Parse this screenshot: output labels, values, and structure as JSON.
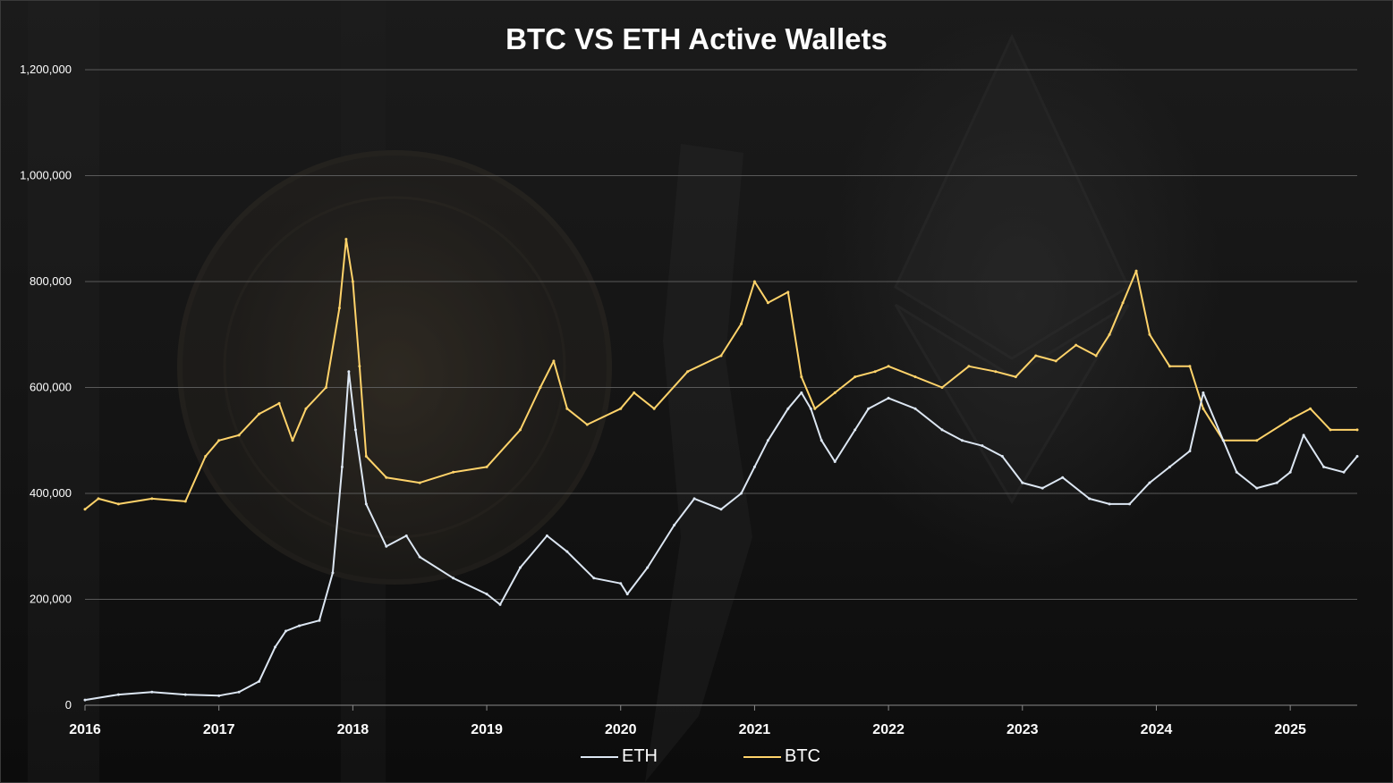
{
  "chart_data": {
    "type": "line",
    "title": "BTC VS ETH Active Wallets",
    "xlabel": "",
    "ylabel": "",
    "xlim": [
      2016.0,
      2025.5
    ],
    "ylim": [
      0,
      1200000
    ],
    "grid": true,
    "legend_position": "bottom",
    "x_ticks": [
      "2016",
      "2017",
      "2018",
      "2019",
      "2020",
      "2021",
      "2022",
      "2023",
      "2024",
      "2025"
    ],
    "y_ticks": [
      "0",
      "200,000",
      "400,000",
      "600,000",
      "800,000",
      "1,000,000",
      "1,200,000"
    ],
    "series": [
      {
        "name": "ETH",
        "color": "#dce6f2",
        "x": [
          2016.0,
          2016.25,
          2016.5,
          2016.75,
          2017.0,
          2017.15,
          2017.3,
          2017.42,
          2017.5,
          2017.6,
          2017.75,
          2017.85,
          2017.92,
          2017.97,
          2018.02,
          2018.1,
          2018.25,
          2018.4,
          2018.5,
          2018.75,
          2019.0,
          2019.1,
          2019.25,
          2019.45,
          2019.6,
          2019.8,
          2020.0,
          2020.05,
          2020.2,
          2020.4,
          2020.55,
          2020.75,
          2020.9,
          2021.0,
          2021.1,
          2021.25,
          2021.35,
          2021.42,
          2021.5,
          2021.6,
          2021.75,
          2021.85,
          2022.0,
          2022.2,
          2022.4,
          2022.55,
          2022.7,
          2022.85,
          2023.0,
          2023.15,
          2023.3,
          2023.5,
          2023.65,
          2023.8,
          2023.95,
          2024.1,
          2024.25,
          2024.35,
          2024.5,
          2024.6,
          2024.75,
          2024.9,
          2025.0,
          2025.1,
          2025.25,
          2025.4,
          2025.5
        ],
        "values": [
          10000,
          20000,
          25000,
          20000,
          18000,
          25000,
          45000,
          110000,
          140000,
          150000,
          160000,
          250000,
          450000,
          630000,
          520000,
          380000,
          300000,
          320000,
          280000,
          240000,
          210000,
          190000,
          260000,
          320000,
          290000,
          240000,
          230000,
          210000,
          260000,
          340000,
          390000,
          370000,
          400000,
          450000,
          500000,
          560000,
          590000,
          560000,
          500000,
          460000,
          520000,
          560000,
          580000,
          560000,
          520000,
          500000,
          490000,
          470000,
          420000,
          410000,
          430000,
          390000,
          380000,
          380000,
          420000,
          450000,
          480000,
          590000,
          500000,
          440000,
          410000,
          420000,
          440000,
          510000,
          450000,
          440000,
          470000
        ]
      },
      {
        "name": "BTC",
        "color": "#ffd36a",
        "x": [
          2016.0,
          2016.1,
          2016.25,
          2016.5,
          2016.75,
          2016.9,
          2017.0,
          2017.15,
          2017.3,
          2017.45,
          2017.55,
          2017.65,
          2017.8,
          2017.9,
          2017.95,
          2018.0,
          2018.05,
          2018.1,
          2018.25,
          2018.5,
          2018.75,
          2019.0,
          2019.25,
          2019.4,
          2019.5,
          2019.6,
          2019.75,
          2020.0,
          2020.1,
          2020.25,
          2020.5,
          2020.75,
          2020.9,
          2021.0,
          2021.1,
          2021.25,
          2021.35,
          2021.45,
          2021.6,
          2021.75,
          2021.9,
          2022.0,
          2022.2,
          2022.4,
          2022.6,
          2022.8,
          2022.95,
          2023.1,
          2023.25,
          2023.4,
          2023.55,
          2023.65,
          2023.75,
          2023.85,
          2023.95,
          2024.1,
          2024.25,
          2024.35,
          2024.5,
          2024.75,
          2025.0,
          2025.15,
          2025.3,
          2025.5
        ],
        "values": [
          370000,
          390000,
          380000,
          390000,
          385000,
          470000,
          500000,
          510000,
          550000,
          570000,
          500000,
          560000,
          600000,
          750000,
          880000,
          800000,
          640000,
          470000,
          430000,
          420000,
          440000,
          450000,
          520000,
          600000,
          650000,
          560000,
          530000,
          560000,
          590000,
          560000,
          630000,
          660000,
          720000,
          800000,
          760000,
          780000,
          620000,
          560000,
          590000,
          620000,
          630000,
          640000,
          620000,
          600000,
          640000,
          630000,
          620000,
          660000,
          650000,
          680000,
          660000,
          700000,
          760000,
          820000,
          700000,
          640000,
          640000,
          560000,
          500000,
          500000,
          540000,
          560000,
          520000,
          520000
        ]
      }
    ]
  }
}
